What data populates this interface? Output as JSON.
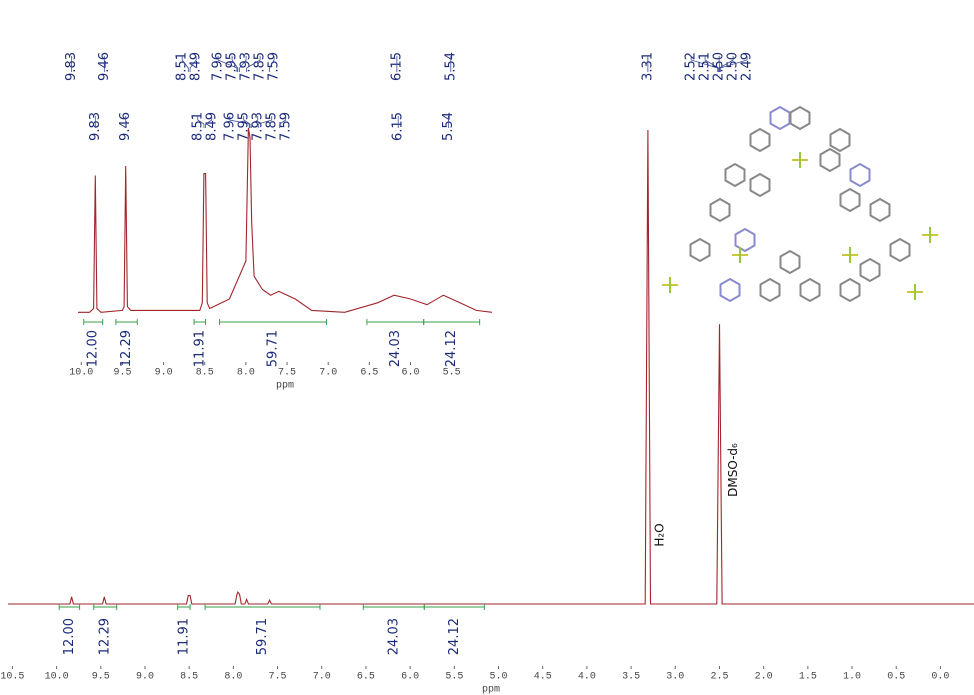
{
  "chart_data": [
    {
      "type": "line",
      "x_label": "ppm",
      "xlim": [
        10.55,
        -0.38
      ],
      "ylim": [
        0,
        100
      ],
      "xticks": [
        {
          "value": 10.5,
          "label": "10.5"
        },
        {
          "value": 10,
          "label": "10.0"
        },
        9.5,
        {
          "value": 9,
          "label": "9.0"
        },
        8.5,
        {
          "value": 8,
          "label": "8.0"
        },
        7.5,
        {
          "value": 7,
          "label": "7.0"
        },
        6.5,
        {
          "value": 6,
          "label": "6.0"
        },
        5.5,
        {
          "value": 5,
          "label": "5.0"
        },
        4.5,
        {
          "value": 4,
          "label": "4.0"
        },
        3.5,
        {
          "value": 3,
          "label": "3.0"
        },
        2.5,
        {
          "value": 2,
          "label": "2.0"
        },
        1.5,
        {
          "value": 1,
          "label": "1.0"
        },
        0.5,
        {
          "value": 0,
          "label": "0.0"
        }
      ],
      "series": [
        {
          "color": "#a0262b",
          "x": [
            10.55,
            9.85,
            9.83,
            9.81,
            9.48,
            9.46,
            9.44,
            8.53,
            8.51,
            8.49,
            8.47,
            7.98,
            7.96,
            7.95,
            7.93,
            7.91,
            7.87,
            7.85,
            7.83,
            7.61,
            7.59,
            7.57,
            3.34,
            3.31,
            3.28,
            2.53,
            2.5,
            2.47,
            -0.38
          ],
          "values": [
            0,
            0,
            1.5,
            0,
            0,
            1.5,
            0,
            0,
            1.8,
            1.8,
            0,
            0,
            2,
            2.5,
            2,
            0,
            0,
            1,
            0,
            0,
            0.8,
            0,
            0,
            100,
            0,
            0,
            59,
            0,
            0
          ]
        }
      ],
      "peak_labels": [
        9.83,
        9.46,
        8.51,
        8.49,
        7.96,
        7.95,
        7.93,
        7.85,
        7.59,
        6.15,
        5.54,
        3.31,
        2.52,
        2.51,
        {
          "value": 2.5,
          "label": "2.50"
        },
        {
          "value": 2.5,
          "label": "2.50"
        },
        2.49
      ],
      "integrals": [
        {
          "range": [
            9.97,
            9.74
          ],
          "value": 12,
          "label": "12.00"
        },
        {
          "range": [
            9.58,
            9.32
          ],
          "value": 12.29
        },
        {
          "range": [
            8.63,
            8.49
          ],
          "value": 11.91
        },
        {
          "range": [
            8.32,
            7.02
          ],
          "value": 59.71
        },
        {
          "range": [
            6.53,
            5.84
          ],
          "value": 24.03
        },
        {
          "range": [
            5.84,
            5.16
          ],
          "value": 24.12
        }
      ],
      "annotations": [
        "H₂O",
        "DMSO-d₆"
      ]
    },
    {
      "type": "line",
      "x_label": "ppm",
      "xlim": [
        10.04,
        5.01
      ],
      "ylim": [
        0,
        100
      ],
      "xticks": [
        {
          "value": 10,
          "label": "10.0"
        },
        9.5,
        {
          "value": 9,
          "label": "9.0"
        },
        8.5,
        {
          "value": 8,
          "label": "8.0"
        },
        7.5,
        {
          "value": 7,
          "label": "7.0"
        },
        6.5,
        {
          "value": 6,
          "label": "6.0"
        },
        5.5
      ],
      "series": [
        {
          "color": "#a0262b",
          "x": [
            10.04,
            9.9,
            9.85,
            9.83,
            9.81,
            9.76,
            9.5,
            9.48,
            9.46,
            9.44,
            9.4,
            8.56,
            8.53,
            8.51,
            8.49,
            8.47,
            8.44,
            8.2,
            8.0,
            7.97,
            7.95,
            7.93,
            7.9,
            7.8,
            7.7,
            7.6,
            7.4,
            7.2,
            6.8,
            6.4,
            6.2,
            6.0,
            5.8,
            5.6,
            5.4,
            5.2,
            5.01
          ],
          "values": [
            3,
            3,
            5,
            75,
            5,
            3,
            4,
            6,
            80,
            6,
            4,
            4,
            8,
            76,
            76,
            8,
            5,
            10,
            30,
            100,
            95,
            50,
            22,
            15,
            12,
            14,
            10,
            4,
            3,
            8,
            12,
            10,
            7,
            12,
            8,
            4,
            3
          ]
        }
      ],
      "peak_labels": [
        9.83,
        9.46,
        8.51,
        8.49,
        7.96,
        7.95,
        7.93,
        7.85,
        7.59,
        6.15,
        5.54
      ],
      "integrals": [
        {
          "range": [
            9.97,
            9.74
          ],
          "value": 12,
          "label": "12.00"
        },
        {
          "range": [
            9.58,
            9.32
          ],
          "value": 12.29
        },
        {
          "range": [
            8.63,
            8.49
          ],
          "value": 11.91
        },
        {
          "range": [
            8.32,
            7.02
          ],
          "value": 59.71
        },
        {
          "range": [
            6.53,
            5.84
          ],
          "value": 24.03
        },
        {
          "range": [
            5.84,
            5.16
          ],
          "value": 24.12
        }
      ]
    }
  ]
}
